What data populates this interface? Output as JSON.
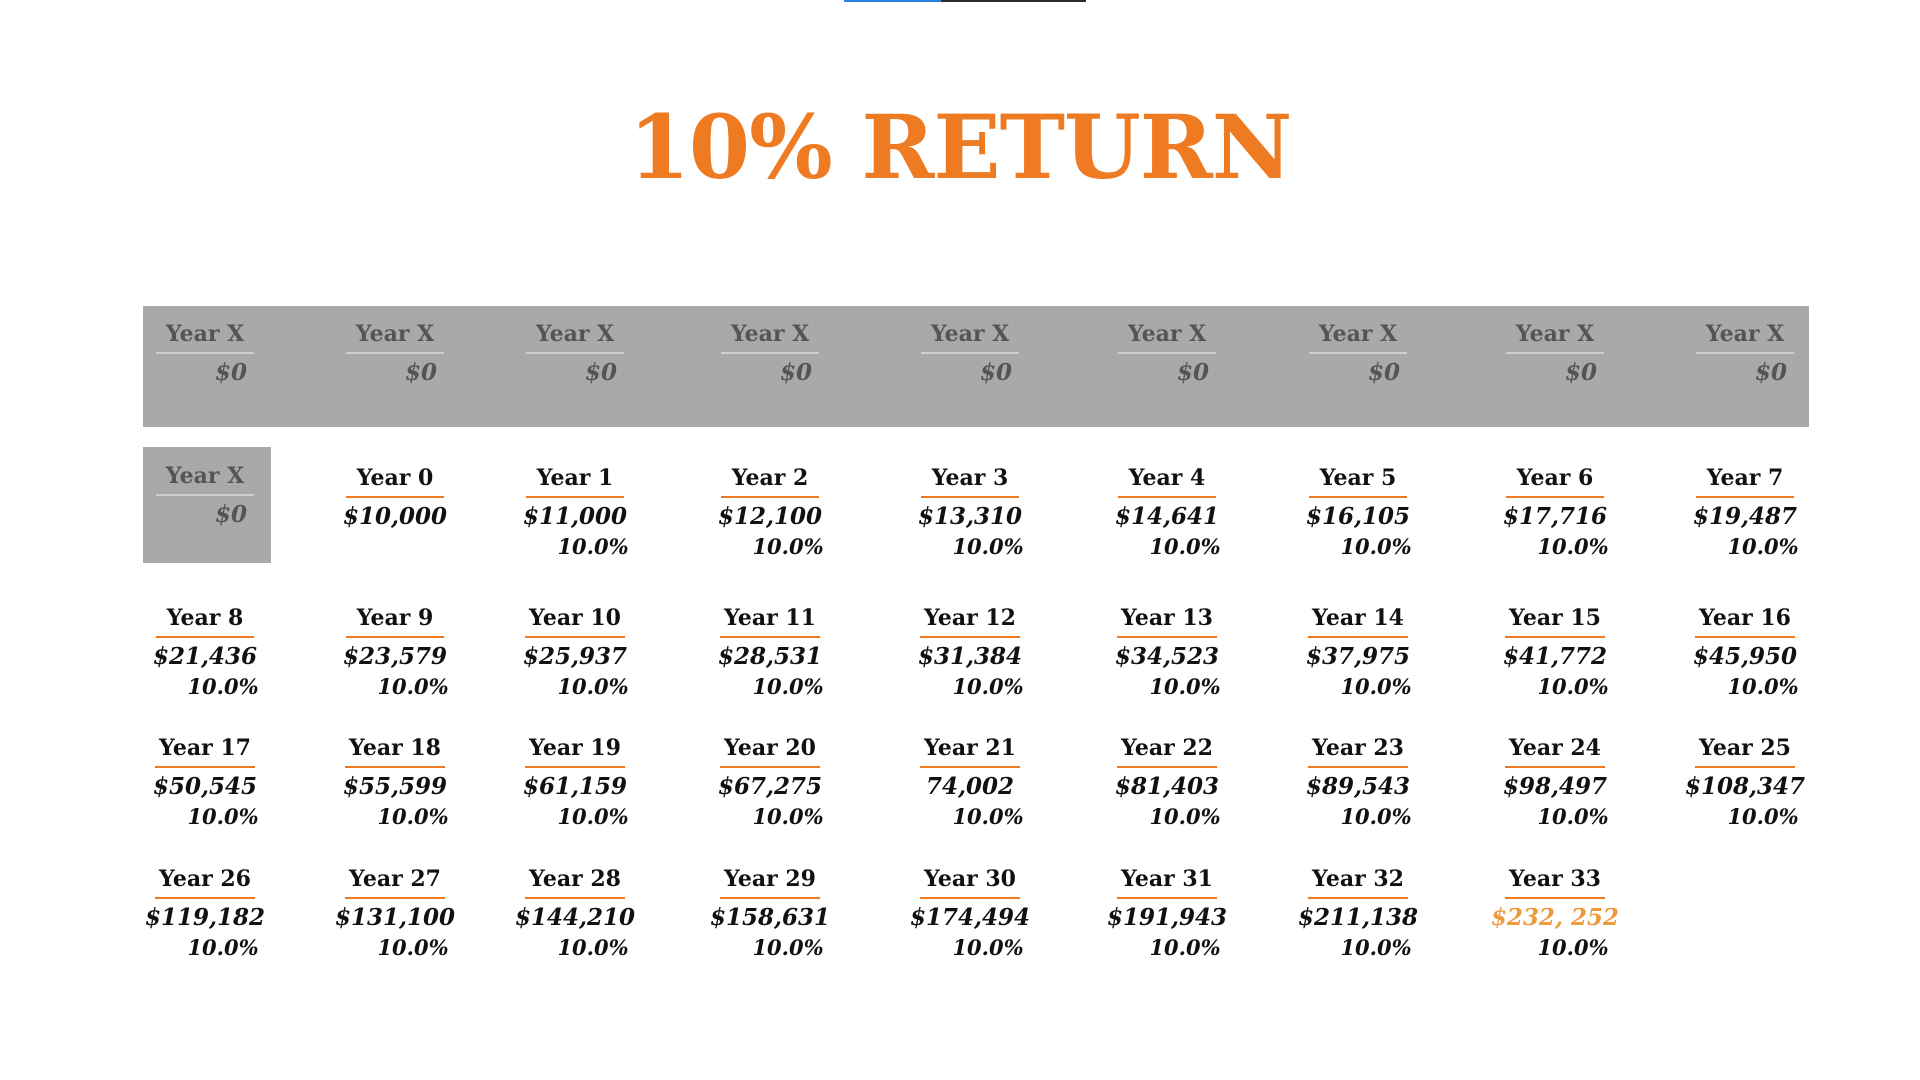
{
  "title": "10% RETURN",
  "colors": {
    "accent": "#ee7b22",
    "highlight": "#ee9a3e",
    "band": "#a9a9a9"
  },
  "video_progress": 0.4,
  "band_cells": [
    {
      "label": "Year X",
      "value": "$0"
    },
    {
      "label": "Year X",
      "value": "$0"
    },
    {
      "label": "Year X",
      "value": "$0"
    },
    {
      "label": "Year X",
      "value": "$0"
    },
    {
      "label": "Year X",
      "value": "$0"
    },
    {
      "label": "Year X",
      "value": "$0"
    },
    {
      "label": "Year X",
      "value": "$0"
    },
    {
      "label": "Year X",
      "value": "$0"
    },
    {
      "label": "Year X",
      "value": "$0"
    }
  ],
  "year_x_box": {
    "label": "Year X",
    "value": "$0"
  },
  "years": [
    {
      "label": "Year 0",
      "value": "$10,000",
      "rate": ""
    },
    {
      "label": "Year 1",
      "value": "$11,000",
      "rate": "10.0%"
    },
    {
      "label": "Year 2",
      "value": "$12,100",
      "rate": "10.0%"
    },
    {
      "label": "Year 3",
      "value": "$13,310",
      "rate": "10.0%"
    },
    {
      "label": "Year 4",
      "value": "$14,641",
      "rate": "10.0%"
    },
    {
      "label": "Year 5",
      "value": "$16,105",
      "rate": "10.0%"
    },
    {
      "label": "Year 6",
      "value": "$17,716",
      "rate": "10.0%"
    },
    {
      "label": "Year 7",
      "value": "$19,487",
      "rate": "10.0%"
    },
    {
      "label": "Year 8",
      "value": "$21,436",
      "rate": "10.0%"
    },
    {
      "label": "Year 9",
      "value": "$23,579",
      "rate": "10.0%"
    },
    {
      "label": "Year 10",
      "value": "$25,937",
      "rate": "10.0%"
    },
    {
      "label": "Year 11",
      "value": "$28,531",
      "rate": "10.0%"
    },
    {
      "label": "Year 12",
      "value": "$31,384",
      "rate": "10.0%"
    },
    {
      "label": "Year 13",
      "value": "$34,523",
      "rate": "10.0%"
    },
    {
      "label": "Year 14",
      "value": "$37,975",
      "rate": "10.0%"
    },
    {
      "label": "Year 15",
      "value": "$41,772",
      "rate": "10.0%"
    },
    {
      "label": "Year 16",
      "value": "$45,950",
      "rate": "10.0%"
    },
    {
      "label": "Year 17",
      "value": "$50,545",
      "rate": "10.0%"
    },
    {
      "label": "Year 18",
      "value": "$55,599",
      "rate": "10.0%"
    },
    {
      "label": "Year 19",
      "value": "$61,159",
      "rate": "10.0%"
    },
    {
      "label": "Year 20",
      "value": "$67,275",
      "rate": "10.0%"
    },
    {
      "label": "Year 21",
      "value": "74,002",
      "rate": "10.0%"
    },
    {
      "label": "Year 22",
      "value": "$81,403",
      "rate": "10.0%"
    },
    {
      "label": "Year 23",
      "value": "$89,543",
      "rate": "10.0%"
    },
    {
      "label": "Year 24",
      "value": "$98,497",
      "rate": "10.0%"
    },
    {
      "label": "Year 25",
      "value": "$108,347",
      "rate": "10.0%"
    },
    {
      "label": "Year 26",
      "value": "$119,182",
      "rate": "10.0%"
    },
    {
      "label": "Year 27",
      "value": "$131,100",
      "rate": "10.0%"
    },
    {
      "label": "Year 28",
      "value": "$144,210",
      "rate": "10.0%"
    },
    {
      "label": "Year 29",
      "value": "$158,631",
      "rate": "10.0%"
    },
    {
      "label": "Year 30",
      "value": "$174,494",
      "rate": "10.0%"
    },
    {
      "label": "Year 31",
      "value": "$191,943",
      "rate": "10.0%"
    },
    {
      "label": "Year 32",
      "value": "$211,138",
      "rate": "10.0%"
    },
    {
      "label": "Year 33",
      "value": "$232, 252",
      "rate": "10.0%",
      "highlight": true
    }
  ]
}
